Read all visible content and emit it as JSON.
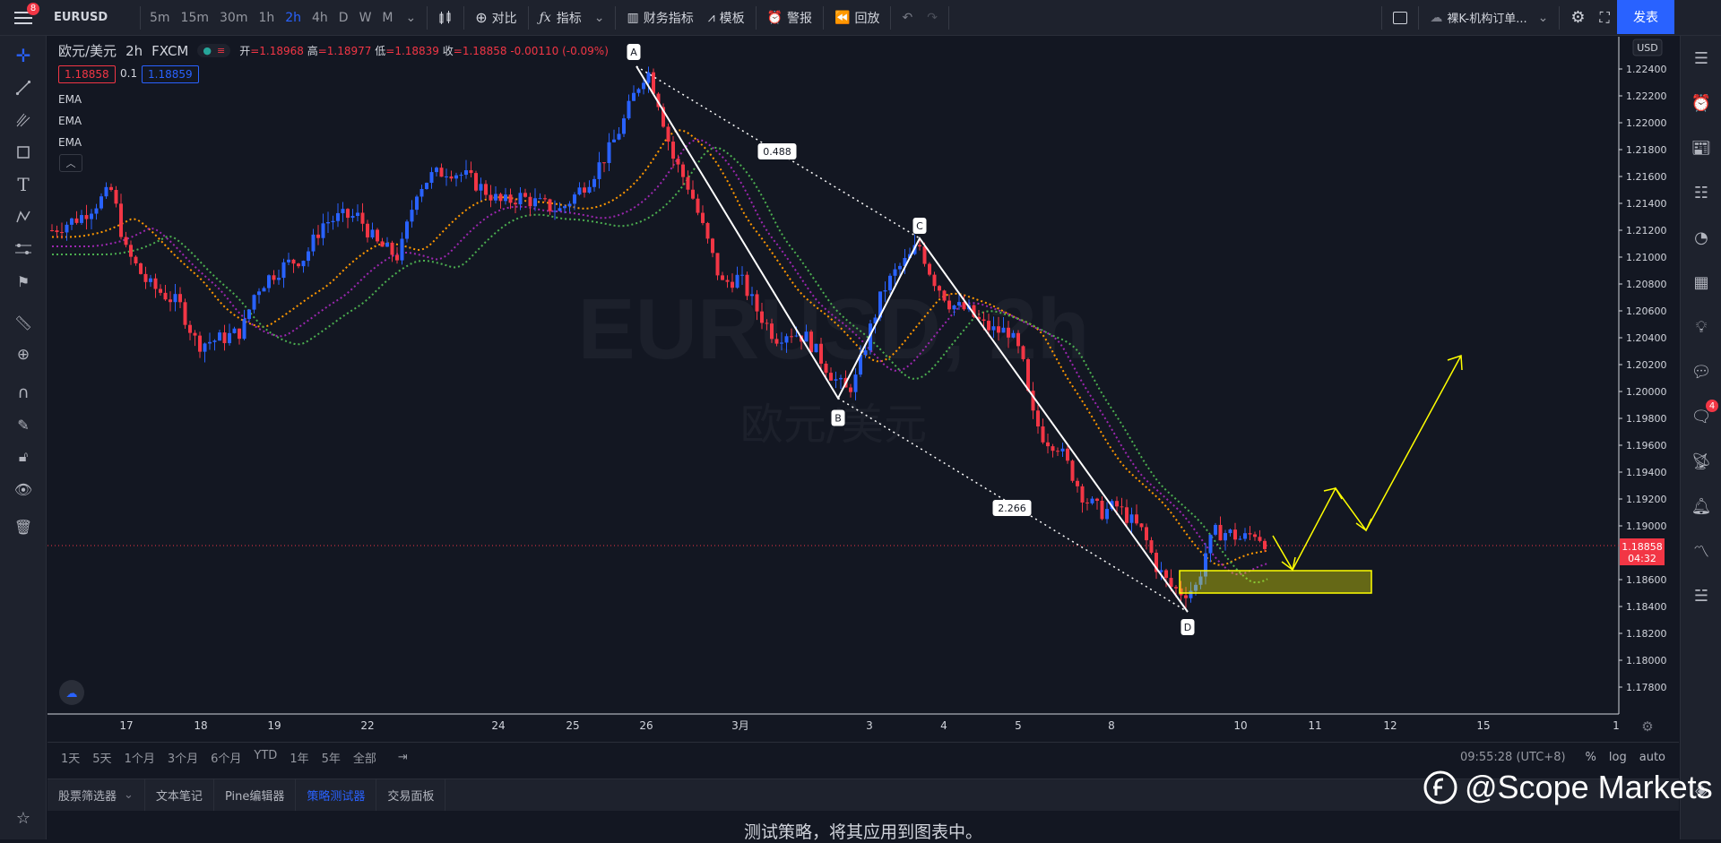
{
  "topbar": {
    "menu_badge": "8",
    "symbol": "EURUSD",
    "timeframes": [
      "5m",
      "15m",
      "30m",
      "1h",
      "2h",
      "4h",
      "D",
      "W",
      "M"
    ],
    "active_timeframe": "2h",
    "compare": "对比",
    "indicators": "指标",
    "financials": "财务指标",
    "templates": "模板",
    "alert": "警报",
    "replay": "回放",
    "layout_name": "裸K-机构订单...",
    "publish": "发表"
  },
  "legend": {
    "title": "欧元/美元",
    "interval": "2h",
    "source": "FXCM",
    "open_label": "开",
    "open": "=1.18968",
    "high_label": "高",
    "high": "=1.18977",
    "low_label": "低",
    "low": "=1.18839",
    "close_label": "收",
    "close": "=1.18858",
    "change": "-0.00110 (-0.09%)",
    "bid": "1.18858",
    "spread": "0.1",
    "ask": "1.18859",
    "ema1": "EMA",
    "ema2": "EMA",
    "ema3": "EMA"
  },
  "watermark_symbol": "EURUSD, 2h",
  "watermark_name": "欧元/美元",
  "price_axis": {
    "currency": "USD",
    "ticks": [
      "1.22400",
      "1.22200",
      "1.22000",
      "1.21800",
      "1.21600",
      "1.21400",
      "1.21200",
      "1.21000",
      "1.20800",
      "1.20600",
      "1.20400",
      "1.20200",
      "1.20000",
      "1.19800",
      "1.19600",
      "1.19400",
      "1.19200",
      "1.19000",
      "1.18600",
      "1.18400",
      "1.18200",
      "1.18000",
      "1.17800"
    ],
    "current_price": "1.18858",
    "countdown": "04:32"
  },
  "time_axis": {
    "ticks": [
      "17",
      "18",
      "19",
      "22",
      "24",
      "25",
      "26",
      "3月",
      "3",
      "4",
      "5",
      "8",
      "10",
      "11",
      "12",
      "15",
      "1"
    ]
  },
  "pattern": {
    "A": "A",
    "B": "B",
    "C": "C",
    "D": "D",
    "ratio_xb": "0.488",
    "ratio_bd": "2.266"
  },
  "chart_data": {
    "type": "candlestick",
    "ylim": [
      1.177,
      1.2255
    ],
    "harmonic_points": {
      "A": {
        "x": "Feb 26",
        "y": 1.2242
      },
      "B": {
        "x": "Mar 2",
        "y": 1.1995
      },
      "C": {
        "x": "Mar 3",
        "y": 1.2114
      },
      "D": {
        "x": "Mar 9",
        "y": 1.1836
      }
    },
    "colors": {
      "up": "#2962ff",
      "down": "#f23645",
      "ema_fast": "#ff9800",
      "ema_mid": "#9c27b0",
      "ema_slow": "#4caf50",
      "projection": "#ffff00"
    }
  },
  "bottombar": {
    "ranges": [
      "1天",
      "5天",
      "1个月",
      "3个月",
      "6个月",
      "YTD",
      "1年",
      "5年",
      "全部"
    ],
    "clock": "09:55:28 (UTC+8)",
    "percent": "%",
    "log": "log",
    "auto": "auto"
  },
  "panels": {
    "tabs": [
      "股票筛选器",
      "文本笔记",
      "Pine编辑器",
      "策略测试器",
      "交易面板"
    ],
    "active": "策略测试器",
    "message": "测试策略，将其应用到图表中。"
  },
  "right_badge": "4",
  "brand": "@Scope Markets"
}
